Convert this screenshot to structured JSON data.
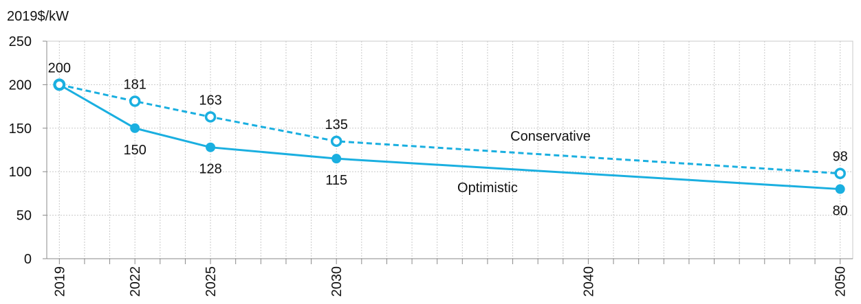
{
  "chart_data": {
    "type": "line",
    "y_axis_label": "2019$/kW",
    "x": [
      2019,
      2022,
      2025,
      2030,
      2050
    ],
    "series": [
      {
        "name": "Optimistic",
        "color": "#1aafe0",
        "style": "solid",
        "values": [
          200,
          150,
          128,
          115,
          80
        ],
        "value_labels": [
          "200",
          "150",
          "128",
          "115",
          "80"
        ]
      },
      {
        "name": "Conservative",
        "color": "#1aafe0",
        "style": "dashed",
        "values": [
          200,
          181,
          163,
          135,
          98
        ],
        "value_labels": [
          null,
          "181",
          "163",
          "135",
          "98"
        ]
      }
    ],
    "xlim": [
      2018.5,
      2050.5
    ],
    "xticks": [
      2019,
      2022,
      2025,
      2030,
      2040,
      2050
    ],
    "minor_xticks": [
      2020,
      2021,
      2023,
      2024,
      2026,
      2027,
      2028,
      2029,
      2031,
      2032,
      2033,
      2034,
      2035,
      2036,
      2037,
      2038,
      2039,
      2041,
      2042,
      2043,
      2044,
      2045,
      2046,
      2047,
      2048,
      2049
    ],
    "ylim": [
      0,
      250
    ],
    "yticks": [
      0,
      50,
      100,
      150,
      200,
      250
    ],
    "grid": true
  }
}
